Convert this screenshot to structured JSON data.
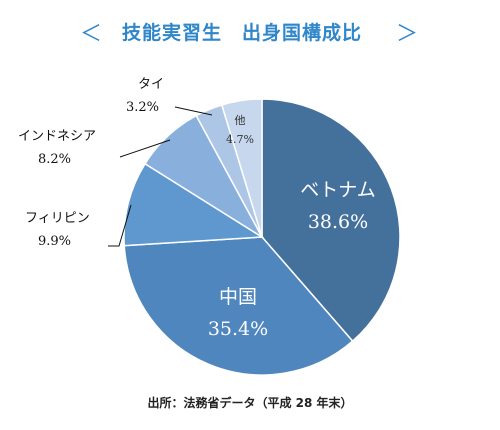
{
  "header": {
    "prev_label": "＜",
    "next_label": "＞",
    "title": "技能実習生　出身国構成比"
  },
  "source": "出所：法務省データ（平成 28 年末）",
  "colors": {
    "title": "#2f86c9",
    "slice_vietnam": "#44719c",
    "slice_china": "#4f86bd",
    "slice_philippines": "#5f98cf",
    "slice_indonesia": "#89b0dd",
    "slice_thailand": "#adc6e6",
    "slice_other": "#c6d7ee",
    "slice_border": "#ffffff"
  },
  "chart_data": {
    "type": "pie",
    "start": "12 o'clock",
    "direction": "clockwise",
    "slices": [
      {
        "label": "ベトナム",
        "value": 38.6,
        "value_text": "38.6%",
        "color": "#44719c",
        "label_placement": "inside"
      },
      {
        "label": "中国",
        "value": 35.4,
        "value_text": "35.4%",
        "color": "#4f86bd",
        "label_placement": "inside"
      },
      {
        "label": "フィリピン",
        "value": 9.9,
        "value_text": "9.9%",
        "color": "#5f98cf",
        "label_placement": "outside"
      },
      {
        "label": "インドネシア",
        "value": 8.2,
        "value_text": "8.2%",
        "color": "#89b0dd",
        "label_placement": "outside"
      },
      {
        "label": "タイ",
        "value": 3.2,
        "value_text": "3.2%",
        "color": "#adc6e6",
        "label_placement": "outside"
      },
      {
        "label": "他",
        "value": 4.7,
        "value_text": "4.7%",
        "color": "#c6d7ee",
        "label_placement": "inside-small"
      }
    ]
  }
}
